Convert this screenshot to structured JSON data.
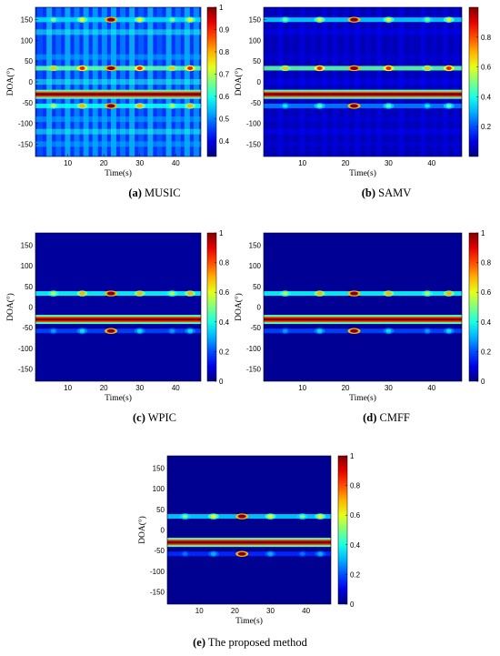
{
  "figure": {
    "captions": [
      {
        "letter": "(a)",
        "text": " MUSIC"
      },
      {
        "letter": "(b)",
        "text": " SAMV"
      },
      {
        "letter": "(c)",
        "text": " WPIC"
      },
      {
        "letter": "(d)",
        "text": " CMFF"
      },
      {
        "letter": "(e)",
        "text": " The proposed method"
      }
    ]
  },
  "chart_data": [
    {
      "type": "heatmap",
      "method": "MUSIC",
      "xlabel": "Time(s)",
      "ylabel": "DOA(°)",
      "xlim": [
        1,
        47
      ],
      "ylim": [
        -180,
        180
      ],
      "x_ticks": [
        10,
        20,
        30,
        40
      ],
      "y_ticks": [
        150,
        100,
        50,
        0,
        -50,
        -100,
        -150
      ],
      "colorbar_ticks": [
        1,
        0.9,
        0.8,
        0.7,
        0.6,
        0.5,
        0.4
      ],
      "colorbar_range": [
        0.33,
        1
      ],
      "background_level": 0.5,
      "sources": [
        {
          "doa": -30,
          "peak": 1.0,
          "note": "continuous strong track"
        },
        {
          "doa": 33,
          "peak": 0.85,
          "note": "intermittent bright spots"
        },
        {
          "doa": -58,
          "peak": 0.7
        },
        {
          "doa": 150,
          "peak": 0.62
        }
      ],
      "hotspots_time": [
        6,
        14,
        22,
        30,
        39,
        44
      ]
    },
    {
      "type": "heatmap",
      "method": "SAMV",
      "xlabel": "Time(s)",
      "ylabel": "DOA(°)",
      "xlim": [
        1,
        47
      ],
      "ylim": [
        -180,
        180
      ],
      "x_ticks": [
        10,
        20,
        30,
        40
      ],
      "y_ticks": [
        150,
        100,
        50,
        0,
        -50,
        -100,
        -150
      ],
      "colorbar_ticks": [
        0.8,
        0.6,
        0.4,
        0.2
      ],
      "colorbar_range": [
        0,
        1
      ],
      "background_level": 0.15,
      "sources": [
        {
          "doa": -30,
          "peak": 1.0
        },
        {
          "doa": 33,
          "peak": 0.85
        },
        {
          "doa": -58,
          "peak": 0.45
        },
        {
          "doa": 150,
          "peak": 0.6
        }
      ],
      "hotspots_time": [
        6,
        14,
        22,
        30,
        39,
        44
      ]
    },
    {
      "type": "heatmap",
      "method": "WPIC",
      "xlabel": "Time(s)",
      "ylabel": "DOA(°)",
      "xlim": [
        1,
        47
      ],
      "ylim": [
        -180,
        180
      ],
      "x_ticks": [
        10,
        20,
        30,
        40
      ],
      "y_ticks": [
        150,
        100,
        50,
        0,
        -50,
        -100,
        -150
      ],
      "colorbar_ticks": [
        1,
        0.8,
        0.6,
        0.4,
        0.2,
        0
      ],
      "colorbar_range": [
        0,
        1
      ],
      "background_level": 0.08,
      "sources": [
        {
          "doa": -30,
          "peak": 1.0
        },
        {
          "doa": 33,
          "peak": 0.7
        },
        {
          "doa": -58,
          "peak": 0.35
        }
      ],
      "hotspots_time": [
        6,
        14,
        22,
        30,
        39,
        44
      ]
    },
    {
      "type": "heatmap",
      "method": "CMFF",
      "xlabel": "Time(s)",
      "ylabel": "DOA(°)",
      "xlim": [
        1,
        47
      ],
      "ylim": [
        -180,
        180
      ],
      "x_ticks": [
        10,
        20,
        30,
        40
      ],
      "y_ticks": [
        150,
        100,
        50,
        0,
        -50,
        -100,
        -150
      ],
      "colorbar_ticks": [
        1,
        0.8,
        0.6,
        0.4,
        0.2,
        0
      ],
      "colorbar_range": [
        0,
        1
      ],
      "background_level": 0.06,
      "sources": [
        {
          "doa": -30,
          "peak": 1.0
        },
        {
          "doa": 33,
          "peak": 0.7
        },
        {
          "doa": -58,
          "peak": 0.35
        }
      ],
      "hotspots_time": [
        6,
        14,
        22,
        30,
        39,
        44
      ]
    },
    {
      "type": "heatmap",
      "method": "The proposed method",
      "xlabel": "Time(s)",
      "ylabel": "DOA(°)",
      "xlim": [
        1,
        47
      ],
      "ylim": [
        -180,
        180
      ],
      "x_ticks": [
        10,
        20,
        30,
        40
      ],
      "y_ticks": [
        150,
        100,
        50,
        0,
        -50,
        -100,
        -150
      ],
      "colorbar_ticks": [
        1,
        0.8,
        0.6,
        0.4,
        0.2,
        0
      ],
      "colorbar_range": [
        0,
        1
      ],
      "background_level": 0.05,
      "sources": [
        {
          "doa": -30,
          "peak": 1.0
        },
        {
          "doa": 33,
          "peak": 0.6
        },
        {
          "doa": -58,
          "peak": 0.3
        }
      ],
      "hotspots_time": [
        6,
        14,
        22,
        30,
        39,
        44
      ]
    }
  ]
}
